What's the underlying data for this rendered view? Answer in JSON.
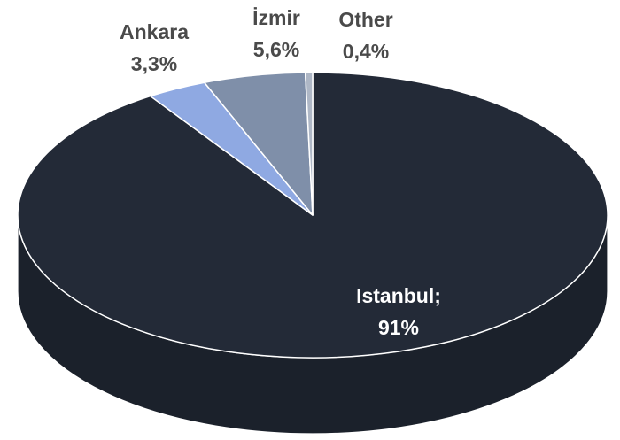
{
  "chart_data": {
    "type": "pie3d",
    "categories": [
      "Istanbul;",
      "Ankara",
      "İzmir",
      "Other"
    ],
    "values": [
      91,
      3.3,
      5.6,
      0.4
    ],
    "value_labels": [
      "91%",
      "3,3%",
      "5,6%",
      "0,4%"
    ],
    "colors": [
      "#232a37",
      "#8fa9e2",
      "#7f8fa9",
      "#aeb7c6"
    ],
    "label_colors": [
      "#ffffff",
      "#4a4a4a",
      "#4a4a4a",
      "#4a4a4a"
    ]
  }
}
